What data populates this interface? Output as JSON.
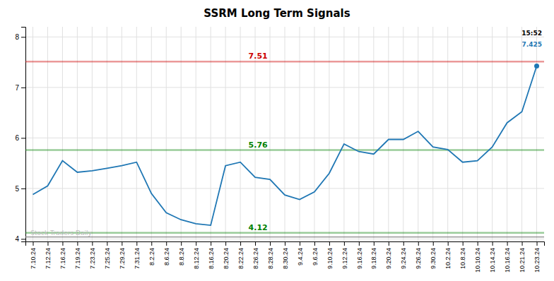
{
  "chart_data": {
    "type": "line",
    "title": "SSRM Long Term Signals",
    "categories": [
      "7.10.24",
      "7.12.24",
      "7.16.24",
      "7.19.24",
      "7.23.24",
      "7.25.24",
      "7.29.24",
      "7.31.24",
      "8.2.24",
      "8.6.24",
      "8.8.24",
      "8.12.24",
      "8.16.24",
      "8.20.24",
      "8.22.24",
      "8.26.24",
      "8.28.24",
      "8.30.24",
      "9.4.24",
      "9.6.24",
      "9.10.24",
      "9.12.24",
      "9.16.24",
      "9.18.24",
      "9.20.24",
      "9.24.24",
      "9.26.24",
      "9.30.24",
      "10.2.24",
      "10.8.24",
      "10.10.24",
      "10.14.24",
      "10.16.24",
      "10.21.24",
      "10.23.24"
    ],
    "values": [
      4.88,
      5.05,
      5.55,
      5.32,
      5.35,
      5.4,
      5.45,
      5.52,
      4.9,
      4.52,
      4.38,
      4.3,
      4.27,
      5.45,
      5.52,
      5.22,
      5.18,
      4.87,
      4.78,
      4.93,
      5.3,
      5.88,
      5.73,
      5.68,
      5.97,
      5.97,
      6.13,
      5.82,
      5.77,
      5.52,
      5.55,
      5.82,
      6.3,
      6.52,
      7.425
    ],
    "hlines": [
      {
        "value": 7.51,
        "label": "7.51",
        "color": "#cc0000"
      },
      {
        "value": 5.76,
        "label": "5.76",
        "color": "#008000"
      },
      {
        "value": 4.12,
        "label": "4.12",
        "color": "#008000"
      },
      {
        "value": 4.04,
        "color": "#888888"
      }
    ],
    "watermark": "Stock Traders Daily",
    "last_time": "15:52",
    "ylim": [
      3.95,
      8.2
    ],
    "yticks": [
      4,
      5,
      6,
      7,
      8
    ],
    "grid": true
  }
}
